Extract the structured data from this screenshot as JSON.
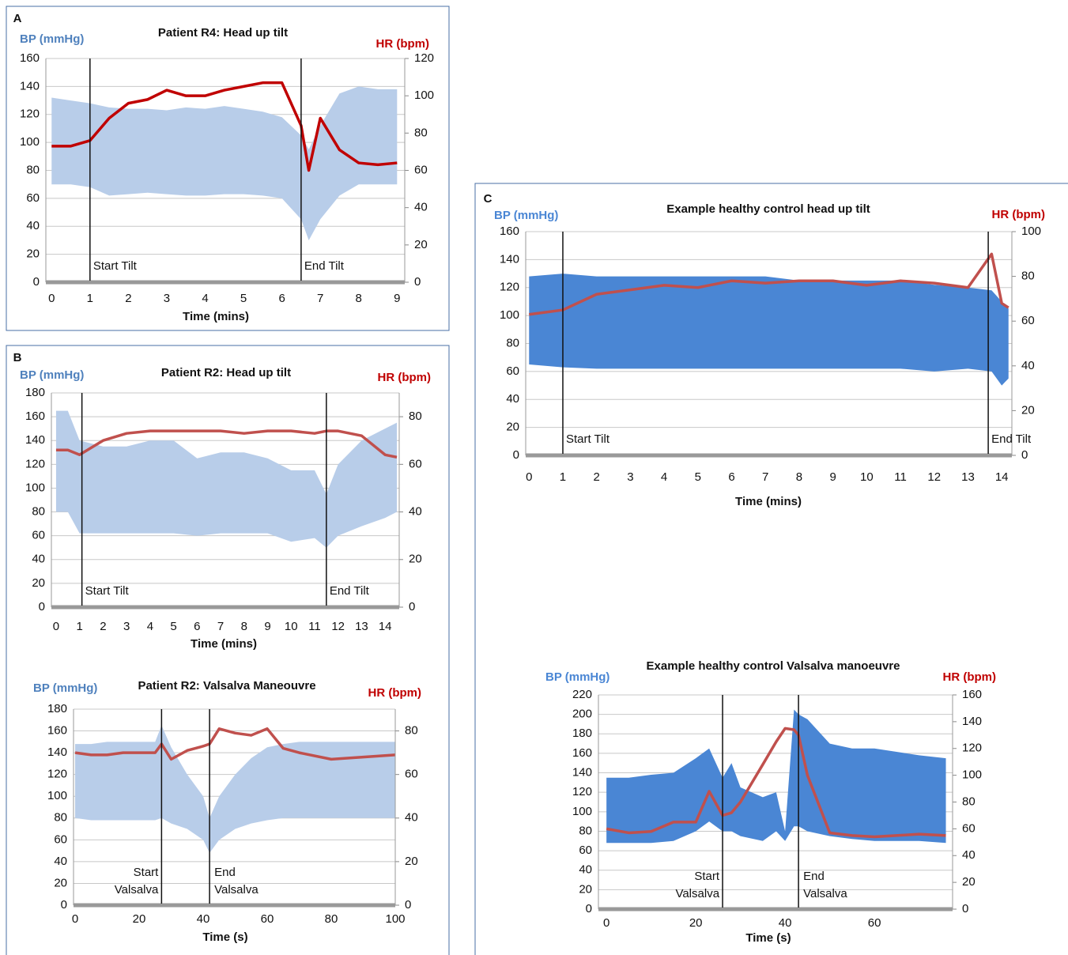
{
  "chart_data": [
    {
      "type": "band-line",
      "panel": "A",
      "title": "Patient R4: Head up tilt",
      "ylabel": "BP (mmHg)",
      "y2label": "HR (bpm)",
      "xlabel": "Time (mins)",
      "x": [
        0,
        0.5,
        1,
        1.5,
        2,
        2.5,
        3,
        3.5,
        4,
        4.5,
        5,
        5.5,
        6,
        6.5,
        6.7,
        7,
        7.5,
        8,
        8.5,
        9
      ],
      "series": [
        {
          "color": "#b8cde9",
          "values": [
            132,
            130,
            128,
            125,
            124,
            124,
            123,
            125,
            124,
            126,
            124,
            122,
            118,
            105,
            95,
            112,
            135,
            140,
            138,
            138
          ],
          "low": [
            70,
            70,
            68,
            62,
            63,
            64,
            63,
            62,
            62,
            63,
            63,
            62,
            60,
            45,
            30,
            45,
            62,
            70,
            70,
            70
          ]
        },
        {
          "color": "#c00000",
          "axis": "y2",
          "values": [
            73,
            73,
            76,
            88,
            96,
            98,
            103,
            100,
            100,
            103,
            105,
            107,
            107,
            84,
            60,
            88,
            71,
            64,
            63,
            64
          ]
        }
      ],
      "events": [
        {
          "x": 1,
          "label": "Start Tilt"
        },
        {
          "x": 6.5,
          "label": "End Tilt"
        }
      ],
      "xlim": [
        -0.15,
        9.2
      ],
      "xticks": [
        0,
        1,
        2,
        3,
        4,
        5,
        6,
        7,
        8,
        9
      ],
      "ylim": [
        0,
        160
      ],
      "yticks": [
        0,
        20,
        40,
        60,
        80,
        100,
        120,
        140,
        160
      ],
      "y2lim": [
        0,
        120
      ],
      "y2ticks": [
        0,
        20,
        40,
        60,
        80,
        100,
        120
      ],
      "grid": true
    },
    {
      "type": "band-line",
      "panel": "B",
      "title": "Patient R2: Head up tilt",
      "ylabel": "BP (mmHg)",
      "y2label": "HR (bpm)",
      "xlabel": "Time (mins)",
      "x": [
        0,
        0.5,
        1,
        2,
        3,
        4,
        5,
        6,
        7,
        8,
        9,
        10,
        11,
        11.5,
        12,
        13,
        14,
        14.5
      ],
      "series": [
        {
          "color": "#b8cde9",
          "values": [
            165,
            165,
            140,
            135,
            135,
            140,
            140,
            125,
            130,
            130,
            125,
            115,
            115,
            95,
            120,
            140,
            150,
            155
          ],
          "low": [
            80,
            80,
            62,
            62,
            62,
            62,
            62,
            60,
            62,
            62,
            62,
            55,
            58,
            50,
            60,
            68,
            75,
            80
          ]
        },
        {
          "color": "#c0504d",
          "axis": "y2",
          "values": [
            66,
            66,
            64,
            70,
            73,
            74,
            74,
            74,
            74,
            73,
            74,
            74,
            73,
            74,
            74,
            72,
            64,
            63
          ]
        }
      ],
      "events": [
        {
          "x": 1.1,
          "label": "Start Tilt"
        },
        {
          "x": 11.5,
          "label": "End Tilt"
        }
      ],
      "xlim": [
        -0.2,
        14.6
      ],
      "xticks": [
        0,
        1,
        2,
        3,
        4,
        5,
        6,
        7,
        8,
        9,
        10,
        11,
        12,
        13,
        14
      ],
      "ylim": [
        0,
        180
      ],
      "yticks": [
        0,
        20,
        40,
        60,
        80,
        100,
        120,
        140,
        160,
        180
      ],
      "y2lim": [
        0,
        90
      ],
      "y2ticks": [
        0,
        20,
        40,
        60,
        80
      ],
      "grid": true
    },
    {
      "type": "band-line",
      "title": "Patient R2: Valsalva Maneouvre",
      "ylabel": "BP (mmHg)",
      "y2label": "HR (bpm)",
      "xlabel": "Time (s)",
      "x": [
        0,
        5,
        10,
        15,
        20,
        25,
        27,
        30,
        35,
        40,
        42,
        45,
        50,
        55,
        60,
        65,
        70,
        80,
        90,
        100
      ],
      "series": [
        {
          "color": "#b8cde9",
          "values": [
            148,
            148,
            150,
            150,
            150,
            150,
            165,
            145,
            120,
            100,
            80,
            100,
            120,
            135,
            145,
            148,
            150,
            150,
            150,
            150
          ],
          "low": [
            80,
            78,
            78,
            78,
            78,
            78,
            80,
            75,
            70,
            60,
            48,
            60,
            70,
            75,
            78,
            80,
            80,
            80,
            80,
            80
          ]
        },
        {
          "color": "#c0504d",
          "axis": "y2",
          "values": [
            70,
            69,
            69,
            70,
            70,
            70,
            74,
            67,
            71,
            73,
            74,
            81,
            79,
            78,
            81,
            72,
            70,
            67,
            68,
            69
          ]
        }
      ],
      "events": [
        {
          "x": 27,
          "label": [
            "Start",
            "Valsalva"
          ]
        },
        {
          "x": 42,
          "label": [
            "End",
            "Valsalva"
          ]
        }
      ],
      "xlim": [
        -0.5,
        100
      ],
      "xticks": [
        0,
        20,
        40,
        60,
        80,
        100
      ],
      "ylim": [
        0,
        180
      ],
      "yticks": [
        0,
        20,
        40,
        60,
        80,
        100,
        120,
        140,
        160,
        180
      ],
      "y2lim": [
        0,
        90
      ],
      "y2ticks": [
        0,
        20,
        40,
        60,
        80
      ],
      "grid": true
    },
    {
      "type": "band-line",
      "panel": "C",
      "title": "Example healthy control head up tilt",
      "ylabel": "BP (mmHg)",
      "y2label": "HR (bpm)",
      "xlabel": "Time (mins)",
      "x": [
        0,
        1,
        2,
        3,
        4,
        5,
        6,
        7,
        8,
        9,
        10,
        11,
        12,
        13,
        13.7,
        14,
        14.2
      ],
      "series": [
        {
          "color": "#4a86d4",
          "values": [
            128,
            130,
            128,
            128,
            128,
            128,
            128,
            128,
            125,
            125,
            125,
            125,
            122,
            120,
            118,
            110,
            105
          ],
          "low": [
            65,
            63,
            62,
            62,
            62,
            62,
            62,
            62,
            62,
            62,
            62,
            62,
            60,
            62,
            60,
            50,
            55
          ]
        },
        {
          "color": "#c0504d",
          "axis": "y2",
          "values": [
            63,
            65,
            72,
            74,
            76,
            75,
            78,
            77,
            78,
            78,
            76,
            78,
            77,
            75,
            90,
            68,
            66
          ]
        }
      ],
      "events": [
        {
          "x": 1,
          "label": "Start Tilt"
        },
        {
          "x": 13.6,
          "label": "End Tilt"
        }
      ],
      "xlim": [
        -0.1,
        14.3
      ],
      "xticks": [
        0,
        1,
        2,
        3,
        4,
        5,
        6,
        7,
        8,
        9,
        10,
        11,
        12,
        13,
        14
      ],
      "ylim": [
        0,
        160
      ],
      "yticks": [
        0,
        20,
        40,
        60,
        80,
        100,
        120,
        140,
        160
      ],
      "y2lim": [
        0,
        100
      ],
      "y2ticks": [
        0,
        20,
        40,
        60,
        80,
        100
      ],
      "grid": true
    },
    {
      "type": "band-line",
      "title": "Example healthy control Valsalva manoeuvre",
      "ylabel": "BP (mmHg)",
      "y2label": "HR (bpm)",
      "xlabel": "Time (s)",
      "x": [
        0,
        5,
        10,
        15,
        20,
        23,
        26,
        28,
        30,
        35,
        38,
        40,
        42,
        43,
        45,
        50,
        55,
        60,
        70,
        76
      ],
      "series": [
        {
          "color": "#4a86d4",
          "values": [
            135,
            135,
            138,
            140,
            155,
            165,
            135,
            150,
            125,
            115,
            120,
            80,
            205,
            200,
            195,
            170,
            165,
            165,
            158,
            155
          ],
          "low": [
            68,
            68,
            68,
            70,
            80,
            90,
            80,
            80,
            75,
            70,
            80,
            70,
            85,
            85,
            80,
            75,
            72,
            70,
            70,
            68
          ]
        },
        {
          "color": "#c0504d",
          "axis": "y2",
          "values": [
            60,
            57,
            58,
            65,
            65,
            88,
            70,
            72,
            80,
            108,
            125,
            135,
            134,
            130,
            100,
            57,
            55,
            54,
            56,
            55
          ]
        }
      ],
      "events": [
        {
          "x": 26,
          "label": [
            "Start",
            "Valsalva"
          ]
        },
        {
          "x": 43,
          "label": [
            "End",
            "Valsalva"
          ]
        }
      ],
      "xlim": [
        -1.8,
        77.5
      ],
      "xticks": [
        0,
        20,
        40,
        60
      ],
      "ylim": [
        0,
        220
      ],
      "yticks": [
        0,
        20,
        40,
        60,
        80,
        100,
        120,
        140,
        160,
        180,
        200,
        220
      ],
      "y2lim": [
        0,
        160
      ],
      "y2ticks": [
        0,
        20,
        40,
        60,
        80,
        100,
        120,
        140,
        160
      ],
      "grid": true
    }
  ]
}
